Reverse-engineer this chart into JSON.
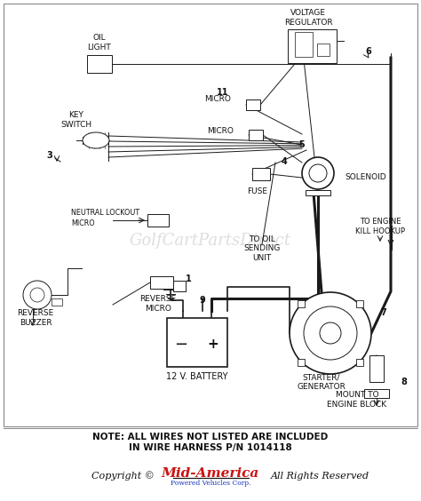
{
  "bg_color": "#ffffff",
  "note_line1": "NOTE: ALL WIRES NOT LISTED ARE INCLUDED",
  "note_line2": "IN WIRE HARNESS P/N 1014118",
  "copyright_text": "Copyright ©",
  "mid_america": "Mid-America",
  "mid_america_sub": "Powered Vehicles Corp.",
  "rights": "All Rights Reserved",
  "watermark": "GolfCartPartsDirect",
  "line_color": "#1a1a1a",
  "watermark_color": "#c8c8c8",
  "mid_america_color": "#cc1111",
  "mid_america_sub_color": "#1133bb"
}
